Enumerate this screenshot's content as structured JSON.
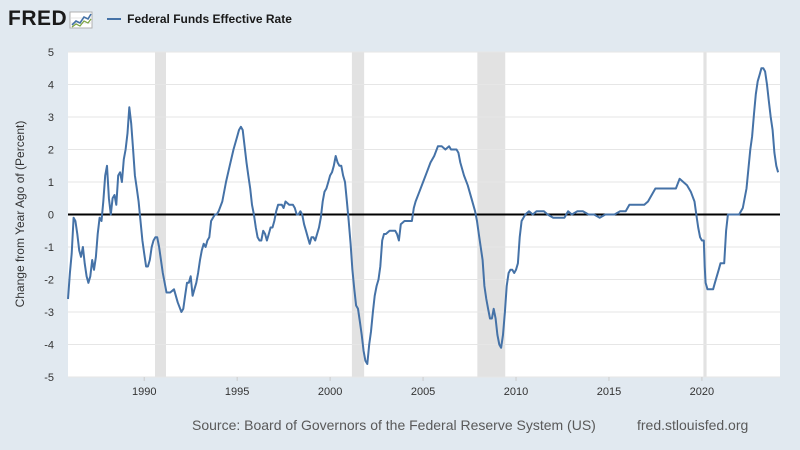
{
  "header": {
    "logo_text": "FRED",
    "legend_label": "Federal Funds Effective Rate",
    "series_color": "#4572a7"
  },
  "footer": {
    "source": "Source: Board of Governors of the Federal Reserve System (US)",
    "site": "fred.stlouisfed.org"
  },
  "chart_data": {
    "type": "line",
    "ylabel": "Change from Year Ago of (Percent)",
    "ylim": [
      -5,
      5
    ],
    "xlim": [
      1985.9,
      2024.2
    ],
    "yticks": [
      -5,
      -4,
      -3,
      -2,
      -1,
      0,
      1,
      2,
      3,
      4,
      5
    ],
    "xticks": [
      1990,
      1995,
      2000,
      2005,
      2010,
      2015,
      2020
    ],
    "zero_line": true,
    "grid": "horizontal",
    "recessions": [
      [
        1990.58,
        1991.17
      ],
      [
        2001.17,
        2001.83
      ],
      [
        2007.92,
        2009.42
      ],
      [
        2020.08,
        2020.25
      ]
    ],
    "series": [
      {
        "name": "Federal Funds Effective Rate",
        "color": "#4572a7",
        "points": [
          [
            1985.9,
            -2.6
          ],
          [
            1986.0,
            -1.8
          ],
          [
            1986.1,
            -1.2
          ],
          [
            1986.2,
            -0.1
          ],
          [
            1986.3,
            -0.2
          ],
          [
            1986.4,
            -0.6
          ],
          [
            1986.5,
            -1.1
          ],
          [
            1986.6,
            -1.3
          ],
          [
            1986.7,
            -1.0
          ],
          [
            1986.8,
            -1.5
          ],
          [
            1986.9,
            -1.9
          ],
          [
            1987.0,
            -2.1
          ],
          [
            1987.1,
            -1.9
          ],
          [
            1987.2,
            -1.4
          ],
          [
            1987.3,
            -1.7
          ],
          [
            1987.4,
            -1.3
          ],
          [
            1987.5,
            -0.6
          ],
          [
            1987.6,
            -0.1
          ],
          [
            1987.7,
            -0.2
          ],
          [
            1987.8,
            0.4
          ],
          [
            1987.9,
            1.2
          ],
          [
            1988.0,
            1.5
          ],
          [
            1988.1,
            0.5
          ],
          [
            1988.2,
            0.0
          ],
          [
            1988.3,
            0.5
          ],
          [
            1988.4,
            0.6
          ],
          [
            1988.5,
            0.3
          ],
          [
            1988.6,
            1.2
          ],
          [
            1988.7,
            1.3
          ],
          [
            1988.8,
            1.0
          ],
          [
            1988.9,
            1.7
          ],
          [
            1989.0,
            2.0
          ],
          [
            1989.1,
            2.5
          ],
          [
            1989.2,
            3.3
          ],
          [
            1989.3,
            2.8
          ],
          [
            1989.4,
            2.0
          ],
          [
            1989.5,
            1.2
          ],
          [
            1989.6,
            0.8
          ],
          [
            1989.7,
            0.4
          ],
          [
            1989.8,
            -0.2
          ],
          [
            1989.9,
            -0.8
          ],
          [
            1990.0,
            -1.2
          ],
          [
            1990.1,
            -1.6
          ],
          [
            1990.2,
            -1.6
          ],
          [
            1990.3,
            -1.4
          ],
          [
            1990.4,
            -1.0
          ],
          [
            1990.5,
            -0.8
          ],
          [
            1990.6,
            -0.7
          ],
          [
            1990.7,
            -0.7
          ],
          [
            1990.8,
            -1.0
          ],
          [
            1991.0,
            -1.8
          ],
          [
            1991.2,
            -2.4
          ],
          [
            1991.4,
            -2.4
          ],
          [
            1991.6,
            -2.3
          ],
          [
            1991.8,
            -2.7
          ],
          [
            1992.0,
            -3.0
          ],
          [
            1992.1,
            -2.9
          ],
          [
            1992.2,
            -2.5
          ],
          [
            1992.3,
            -2.1
          ],
          [
            1992.4,
            -2.1
          ],
          [
            1992.5,
            -1.9
          ],
          [
            1992.6,
            -2.5
          ],
          [
            1992.7,
            -2.3
          ],
          [
            1992.8,
            -2.1
          ],
          [
            1992.9,
            -1.8
          ],
          [
            1993.0,
            -1.4
          ],
          [
            1993.1,
            -1.1
          ],
          [
            1993.2,
            -0.9
          ],
          [
            1993.3,
            -1.0
          ],
          [
            1993.4,
            -0.8
          ],
          [
            1993.5,
            -0.7
          ],
          [
            1993.6,
            -0.2
          ],
          [
            1993.7,
            -0.1
          ],
          [
            1993.8,
            0.0
          ],
          [
            1993.9,
            0.0
          ],
          [
            1994.0,
            0.1
          ],
          [
            1994.2,
            0.4
          ],
          [
            1994.4,
            1.0
          ],
          [
            1994.6,
            1.5
          ],
          [
            1994.8,
            2.0
          ],
          [
            1995.0,
            2.4
          ],
          [
            1995.1,
            2.6
          ],
          [
            1995.2,
            2.7
          ],
          [
            1995.3,
            2.6
          ],
          [
            1995.4,
            2.1
          ],
          [
            1995.5,
            1.6
          ],
          [
            1995.6,
            1.2
          ],
          [
            1995.7,
            0.8
          ],
          [
            1995.8,
            0.3
          ],
          [
            1995.9,
            0.0
          ],
          [
            1996.0,
            -0.4
          ],
          [
            1996.1,
            -0.7
          ],
          [
            1996.2,
            -0.8
          ],
          [
            1996.3,
            -0.8
          ],
          [
            1996.4,
            -0.5
          ],
          [
            1996.5,
            -0.6
          ],
          [
            1996.6,
            -0.8
          ],
          [
            1996.7,
            -0.6
          ],
          [
            1996.8,
            -0.4
          ],
          [
            1996.9,
            -0.4
          ],
          [
            1997.0,
            -0.2
          ],
          [
            1997.1,
            0.1
          ],
          [
            1997.2,
            0.3
          ],
          [
            1997.4,
            0.3
          ],
          [
            1997.5,
            0.2
          ],
          [
            1997.6,
            0.4
          ],
          [
            1997.8,
            0.3
          ],
          [
            1997.9,
            0.3
          ],
          [
            1998.0,
            0.3
          ],
          [
            1998.1,
            0.2
          ],
          [
            1998.2,
            0.0
          ],
          [
            1998.3,
            0.0
          ],
          [
            1998.4,
            0.1
          ],
          [
            1998.5,
            0.0
          ],
          [
            1998.6,
            -0.3
          ],
          [
            1998.7,
            -0.5
          ],
          [
            1998.8,
            -0.7
          ],
          [
            1998.9,
            -0.9
          ],
          [
            1999.0,
            -0.7
          ],
          [
            1999.1,
            -0.7
          ],
          [
            1999.2,
            -0.8
          ],
          [
            1999.3,
            -0.6
          ],
          [
            1999.4,
            -0.4
          ],
          [
            1999.5,
            -0.1
          ],
          [
            1999.6,
            0.4
          ],
          [
            1999.7,
            0.7
          ],
          [
            1999.8,
            0.8
          ],
          [
            1999.9,
            1.0
          ],
          [
            2000.0,
            1.2
          ],
          [
            2000.1,
            1.3
          ],
          [
            2000.2,
            1.5
          ],
          [
            2000.3,
            1.8
          ],
          [
            2000.4,
            1.6
          ],
          [
            2000.5,
            1.5
          ],
          [
            2000.6,
            1.5
          ],
          [
            2000.7,
            1.2
          ],
          [
            2000.8,
            1.0
          ],
          [
            2000.9,
            0.4
          ],
          [
            2001.0,
            -0.2
          ],
          [
            2001.1,
            -0.9
          ],
          [
            2001.2,
            -1.7
          ],
          [
            2001.3,
            -2.3
          ],
          [
            2001.4,
            -2.8
          ],
          [
            2001.5,
            -2.9
          ],
          [
            2001.6,
            -3.3
          ],
          [
            2001.7,
            -3.7
          ],
          [
            2001.8,
            -4.2
          ],
          [
            2001.9,
            -4.5
          ],
          [
            2002.0,
            -4.6
          ],
          [
            2002.1,
            -4.0
          ],
          [
            2002.2,
            -3.6
          ],
          [
            2002.3,
            -3.0
          ],
          [
            2002.4,
            -2.5
          ],
          [
            2002.5,
            -2.2
          ],
          [
            2002.6,
            -2.0
          ],
          [
            2002.7,
            -1.6
          ],
          [
            2002.8,
            -0.8
          ],
          [
            2002.9,
            -0.6
          ],
          [
            2003.0,
            -0.6
          ],
          [
            2003.2,
            -0.5
          ],
          [
            2003.4,
            -0.5
          ],
          [
            2003.5,
            -0.5
          ],
          [
            2003.6,
            -0.6
          ],
          [
            2003.7,
            -0.8
          ],
          [
            2003.8,
            -0.3
          ],
          [
            2004.0,
            -0.2
          ],
          [
            2004.2,
            -0.2
          ],
          [
            2004.4,
            -0.2
          ],
          [
            2004.5,
            0.2
          ],
          [
            2004.6,
            0.4
          ],
          [
            2004.8,
            0.7
          ],
          [
            2005.0,
            1.0
          ],
          [
            2005.2,
            1.3
          ],
          [
            2005.4,
            1.6
          ],
          [
            2005.6,
            1.8
          ],
          [
            2005.8,
            2.1
          ],
          [
            2006.0,
            2.1
          ],
          [
            2006.2,
            2.0
          ],
          [
            2006.4,
            2.1
          ],
          [
            2006.5,
            2.0
          ],
          [
            2006.6,
            2.0
          ],
          [
            2006.7,
            2.0
          ],
          [
            2006.8,
            2.0
          ],
          [
            2006.9,
            1.9
          ],
          [
            2007.0,
            1.6
          ],
          [
            2007.2,
            1.2
          ],
          [
            2007.4,
            0.9
          ],
          [
            2007.6,
            0.5
          ],
          [
            2007.8,
            0.1
          ],
          [
            2007.9,
            -0.2
          ],
          [
            2008.0,
            -0.6
          ],
          [
            2008.1,
            -1.0
          ],
          [
            2008.2,
            -1.4
          ],
          [
            2008.3,
            -2.2
          ],
          [
            2008.4,
            -2.6
          ],
          [
            2008.5,
            -2.9
          ],
          [
            2008.6,
            -3.2
          ],
          [
            2008.7,
            -3.2
          ],
          [
            2008.8,
            -2.9
          ],
          [
            2008.9,
            -3.2
          ],
          [
            2009.0,
            -3.7
          ],
          [
            2009.1,
            -4.0
          ],
          [
            2009.2,
            -4.1
          ],
          [
            2009.3,
            -3.7
          ],
          [
            2009.4,
            -3.0
          ],
          [
            2009.5,
            -2.2
          ],
          [
            2009.6,
            -1.8
          ],
          [
            2009.7,
            -1.7
          ],
          [
            2009.8,
            -1.7
          ],
          [
            2009.9,
            -1.8
          ],
          [
            2010.0,
            -1.7
          ],
          [
            2010.1,
            -1.5
          ],
          [
            2010.2,
            -0.7
          ],
          [
            2010.3,
            -0.2
          ],
          [
            2010.5,
            0.0
          ],
          [
            2010.7,
            0.1
          ],
          [
            2010.9,
            0.0
          ],
          [
            2011.1,
            0.1
          ],
          [
            2011.3,
            0.1
          ],
          [
            2011.5,
            0.1
          ],
          [
            2011.7,
            0.0
          ],
          [
            2012.0,
            -0.1
          ],
          [
            2012.3,
            -0.1
          ],
          [
            2012.6,
            -0.1
          ],
          [
            2012.8,
            0.1
          ],
          [
            2013.0,
            0.0
          ],
          [
            2013.3,
            0.1
          ],
          [
            2013.6,
            0.1
          ],
          [
            2013.9,
            0.0
          ],
          [
            2014.2,
            0.0
          ],
          [
            2014.5,
            -0.1
          ],
          [
            2014.8,
            0.0
          ],
          [
            2015.0,
            0.0
          ],
          [
            2015.3,
            0.0
          ],
          [
            2015.6,
            0.1
          ],
          [
            2015.9,
            0.1
          ],
          [
            2016.1,
            0.3
          ],
          [
            2016.4,
            0.3
          ],
          [
            2016.7,
            0.3
          ],
          [
            2016.9,
            0.3
          ],
          [
            2017.1,
            0.4
          ],
          [
            2017.3,
            0.6
          ],
          [
            2017.5,
            0.8
          ],
          [
            2017.8,
            0.8
          ],
          [
            2018.1,
            0.8
          ],
          [
            2018.4,
            0.8
          ],
          [
            2018.6,
            0.8
          ],
          [
            2018.8,
            1.1
          ],
          [
            2019.0,
            1.0
          ],
          [
            2019.2,
            0.9
          ],
          [
            2019.4,
            0.7
          ],
          [
            2019.6,
            0.4
          ],
          [
            2019.7,
            0.0
          ],
          [
            2019.8,
            -0.4
          ],
          [
            2019.9,
            -0.7
          ],
          [
            2020.0,
            -0.8
          ],
          [
            2020.1,
            -0.8
          ],
          [
            2020.15,
            -1.6
          ],
          [
            2020.2,
            -2.1
          ],
          [
            2020.3,
            -2.3
          ],
          [
            2020.4,
            -2.3
          ],
          [
            2020.6,
            -2.3
          ],
          [
            2020.7,
            -2.1
          ],
          [
            2020.8,
            -1.9
          ],
          [
            2020.9,
            -1.7
          ],
          [
            2021.0,
            -1.5
          ],
          [
            2021.2,
            -1.5
          ],
          [
            2021.3,
            -0.5
          ],
          [
            2021.4,
            0.0
          ],
          [
            2021.6,
            0.0
          ],
          [
            2021.8,
            0.0
          ],
          [
            2022.0,
            0.0
          ],
          [
            2022.2,
            0.2
          ],
          [
            2022.4,
            0.8
          ],
          [
            2022.5,
            1.4
          ],
          [
            2022.6,
            2.0
          ],
          [
            2022.7,
            2.4
          ],
          [
            2022.8,
            3.1
          ],
          [
            2022.9,
            3.7
          ],
          [
            2023.0,
            4.1
          ],
          [
            2023.1,
            4.3
          ],
          [
            2023.2,
            4.5
          ],
          [
            2023.3,
            4.5
          ],
          [
            2023.4,
            4.4
          ],
          [
            2023.5,
            4.0
          ],
          [
            2023.6,
            3.5
          ],
          [
            2023.7,
            3.0
          ],
          [
            2023.8,
            2.6
          ],
          [
            2023.9,
            1.9
          ],
          [
            2024.0,
            1.5
          ],
          [
            2024.1,
            1.3
          ]
        ]
      }
    ]
  }
}
